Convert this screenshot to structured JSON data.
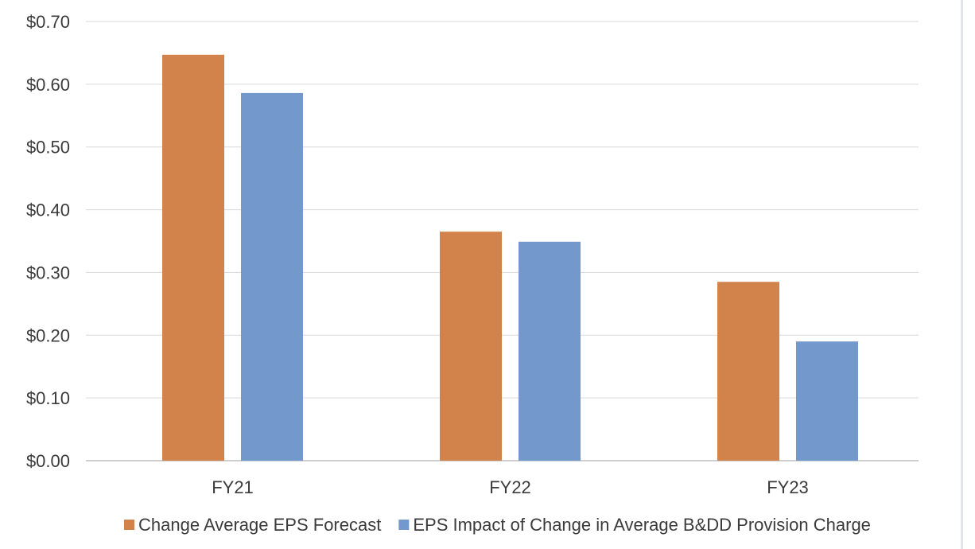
{
  "chart_data": {
    "type": "bar",
    "categories": [
      "FY21",
      "FY22",
      "FY23"
    ],
    "series": [
      {
        "name": "Change Average EPS Forecast",
        "values": [
          0.647,
          0.365,
          0.285
        ],
        "color": "#d2834c"
      },
      {
        "name": "EPS Impact of Change in Average B&DD Provision Charge",
        "values": [
          0.586,
          0.349,
          0.19
        ],
        "color": "#7399cc"
      }
    ],
    "ylim": [
      0,
      0.7
    ],
    "yticks": [
      0,
      0.1,
      0.2,
      0.3,
      0.4,
      0.5,
      0.6,
      0.7
    ],
    "ytick_labels": [
      "$0.00",
      "$0.10",
      "$0.20",
      "$0.30",
      "$0.40",
      "$0.50",
      "$0.60",
      "$0.70"
    ],
    "grid": true,
    "legend_position": "bottom",
    "colors": {
      "grid": "#d9d9d9",
      "axis": "#bfbfbf",
      "text": "#3b3b3b"
    }
  }
}
